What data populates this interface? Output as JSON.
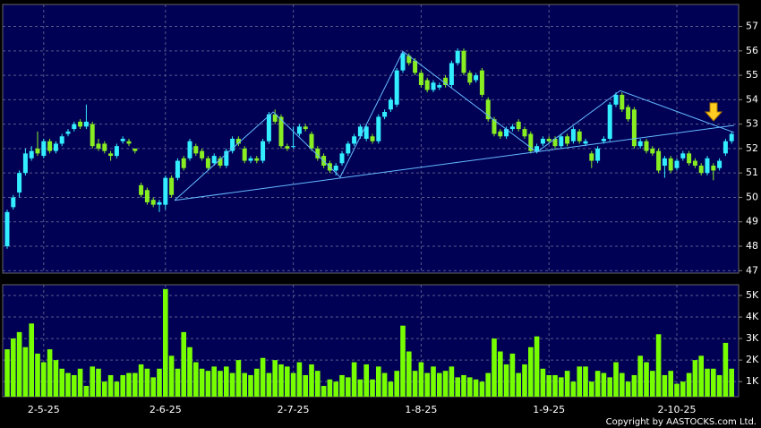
{
  "chart_data": {
    "type": "candlestick",
    "categories": [
      null,
      null,
      null,
      null,
      null,
      null,
      "2-5-25",
      null,
      null,
      null,
      null,
      null,
      null,
      null,
      null,
      null,
      null,
      null,
      null,
      null,
      null,
      null,
      null,
      null,
      null,
      null,
      "2-6-25",
      null,
      null,
      null,
      null,
      null,
      null,
      null,
      null,
      null,
      null,
      null,
      null,
      null,
      null,
      null,
      null,
      null,
      null,
      null,
      null,
      "2-7-25",
      null,
      null,
      null,
      null,
      null,
      null,
      null,
      null,
      null,
      null,
      null,
      null,
      null,
      null,
      null,
      null,
      null,
      null,
      null,
      null,
      "1-8-25",
      null,
      null,
      null,
      null,
      null,
      null,
      null,
      null,
      null,
      null,
      null,
      null,
      null,
      null,
      null,
      null,
      null,
      null,
      null,
      null,
      "1-9-25",
      null,
      null,
      null,
      null,
      null,
      null,
      null,
      null,
      null,
      null,
      null,
      null,
      null,
      null,
      null,
      null,
      null,
      null,
      null,
      null,
      "2-10-25",
      null,
      null,
      null,
      null,
      null,
      null,
      null,
      null,
      null
    ],
    "ohlc": [
      [
        48.0,
        49.5,
        47.9,
        49.4
      ],
      [
        49.6,
        50.1,
        49.5,
        50.0
      ],
      [
        50.2,
        51.1,
        50.0,
        51.0
      ],
      [
        51.0,
        52.0,
        50.9,
        51.8
      ],
      [
        51.6,
        52.1,
        51.5,
        51.9
      ],
      [
        52.0,
        52.7,
        51.7,
        51.8
      ],
      [
        51.7,
        52.4,
        51.6,
        52.3
      ],
      [
        52.3,
        52.4,
        51.8,
        51.9
      ],
      [
        51.9,
        52.3,
        51.8,
        52.2
      ],
      [
        52.2,
        52.6,
        52.1,
        52.5
      ],
      [
        52.6,
        52.8,
        52.5,
        52.7
      ],
      [
        52.8,
        53.1,
        52.7,
        53.0
      ],
      [
        53.1,
        53.2,
        52.8,
        52.9
      ],
      [
        52.9,
        53.8,
        52.8,
        53.1
      ],
      [
        53.0,
        53.1,
        52.0,
        52.1
      ],
      [
        52.2,
        52.4,
        51.9,
        52.0
      ],
      [
        52.2,
        52.3,
        51.8,
        51.9
      ],
      [
        51.8,
        51.9,
        51.5,
        51.7
      ],
      [
        51.7,
        52.2,
        51.6,
        52.1
      ],
      [
        52.3,
        52.5,
        52.2,
        52.4
      ],
      [
        52.3,
        52.4,
        52.1,
        52.2
      ],
      [
        52.0,
        52.0,
        51.8,
        51.9
      ],
      [
        50.5,
        50.6,
        50.0,
        50.1
      ],
      [
        50.3,
        50.4,
        49.7,
        49.8
      ],
      [
        49.9,
        50.0,
        49.6,
        49.7
      ],
      [
        49.7,
        49.9,
        49.4,
        49.8
      ],
      [
        49.7,
        50.9,
        49.5,
        50.8
      ],
      [
        50.8,
        50.9,
        50.0,
        50.1
      ],
      [
        50.8,
        51.6,
        50.7,
        51.5
      ],
      [
        51.6,
        51.7,
        51.1,
        51.2
      ],
      [
        51.6,
        52.4,
        51.5,
        52.3
      ],
      [
        52.1,
        52.2,
        51.7,
        51.8
      ],
      [
        51.9,
        52.0,
        51.5,
        51.6
      ],
      [
        51.6,
        51.7,
        51.1,
        51.2
      ],
      [
        51.4,
        51.8,
        51.3,
        51.7
      ],
      [
        51.6,
        51.7,
        51.2,
        51.3
      ],
      [
        51.3,
        52.0,
        51.2,
        51.9
      ],
      [
        51.9,
        52.5,
        51.8,
        52.4
      ],
      [
        52.4,
        52.5,
        52.1,
        52.2
      ],
      [
        52.0,
        52.1,
        51.4,
        51.5
      ],
      [
        51.5,
        51.7,
        51.4,
        51.6
      ],
      [
        51.6,
        51.7,
        51.4,
        51.5
      ],
      [
        51.5,
        52.4,
        51.4,
        52.3
      ],
      [
        52.3,
        53.5,
        52.2,
        53.4
      ],
      [
        53.4,
        53.6,
        53.0,
        53.1
      ],
      [
        53.3,
        53.4,
        52.0,
        52.1
      ],
      [
        52.1,
        52.2,
        51.9,
        52.0
      ],
      [
        52.1,
        52.9,
        52.0,
        52.1
      ],
      [
        52.6,
        53.0,
        52.5,
        52.9
      ],
      [
        52.9,
        53.0,
        52.7,
        52.8
      ],
      [
        52.6,
        52.7,
        51.9,
        52.0
      ],
      [
        52.0,
        52.1,
        51.5,
        51.6
      ],
      [
        51.7,
        51.8,
        51.2,
        51.3
      ],
      [
        51.4,
        51.5,
        51.0,
        51.1
      ],
      [
        51.1,
        51.4,
        50.9,
        51.3
      ],
      [
        51.4,
        51.9,
        51.3,
        51.8
      ],
      [
        51.8,
        52.3,
        51.7,
        52.2
      ],
      [
        52.2,
        52.6,
        52.1,
        52.5
      ],
      [
        52.5,
        53.0,
        52.4,
        52.9
      ],
      [
        52.4,
        53.0,
        52.3,
        52.9
      ],
      [
        52.5,
        52.6,
        52.2,
        52.3
      ],
      [
        52.3,
        53.4,
        52.2,
        53.3
      ],
      [
        53.3,
        53.6,
        53.2,
        53.5
      ],
      [
        53.6,
        54.1,
        53.5,
        54.0
      ],
      [
        53.8,
        55.3,
        53.7,
        55.2
      ],
      [
        55.2,
        56.0,
        55.1,
        55.9
      ],
      [
        55.8,
        55.9,
        55.4,
        55.5
      ],
      [
        55.6,
        55.7,
        55.0,
        55.1
      ],
      [
        55.1,
        55.2,
        54.5,
        54.6
      ],
      [
        54.8,
        54.9,
        54.3,
        54.4
      ],
      [
        54.4,
        54.8,
        54.3,
        54.7
      ],
      [
        54.5,
        54.7,
        54.4,
        54.6
      ],
      [
        54.9,
        55.0,
        54.5,
        54.6
      ],
      [
        54.6,
        55.6,
        54.5,
        55.5
      ],
      [
        55.5,
        56.1,
        55.4,
        56.0
      ],
      [
        56.0,
        56.1,
        55.0,
        55.1
      ],
      [
        55.1,
        55.2,
        54.6,
        54.7
      ],
      [
        54.8,
        55.1,
        54.7,
        55.0
      ],
      [
        55.2,
        55.3,
        54.1,
        54.2
      ],
      [
        54.0,
        54.1,
        53.1,
        53.2
      ],
      [
        53.2,
        53.3,
        52.5,
        52.6
      ],
      [
        52.7,
        52.8,
        52.4,
        52.5
      ],
      [
        52.5,
        52.9,
        52.4,
        52.8
      ],
      [
        52.8,
        53.0,
        52.7,
        52.9
      ],
      [
        53.1,
        53.2,
        52.7,
        52.8
      ],
      [
        52.8,
        52.9,
        52.4,
        52.5
      ],
      [
        52.6,
        52.7,
        51.8,
        51.9
      ],
      [
        51.9,
        52.2,
        51.8,
        52.1
      ],
      [
        52.2,
        52.5,
        52.1,
        52.4
      ],
      [
        52.4,
        52.5,
        52.2,
        52.3
      ],
      [
        52.4,
        52.5,
        52.0,
        52.1
      ],
      [
        52.1,
        52.6,
        52.0,
        52.5
      ],
      [
        52.5,
        52.6,
        52.1,
        52.2
      ],
      [
        52.3,
        52.9,
        52.2,
        52.8
      ],
      [
        52.7,
        52.8,
        52.2,
        52.3
      ],
      [
        52.2,
        52.4,
        52.1,
        52.3
      ],
      [
        51.8,
        51.9,
        51.2,
        51.5
      ],
      [
        51.5,
        52.1,
        51.4,
        52.0
      ],
      [
        52.3,
        52.5,
        52.2,
        52.4
      ],
      [
        52.4,
        53.9,
        52.3,
        53.8
      ],
      [
        53.8,
        54.3,
        53.7,
        54.2
      ],
      [
        54.2,
        54.3,
        53.5,
        53.6
      ],
      [
        53.7,
        53.8,
        53.1,
        53.2
      ],
      [
        53.6,
        53.7,
        52.0,
        52.1
      ],
      [
        52.1,
        52.4,
        52.0,
        52.3
      ],
      [
        52.3,
        52.4,
        51.8,
        51.9
      ],
      [
        52.0,
        52.1,
        51.7,
        51.8
      ],
      [
        51.9,
        52.0,
        51.0,
        51.1
      ],
      [
        51.3,
        51.7,
        50.8,
        51.6
      ],
      [
        51.6,
        51.7,
        51.0,
        51.1
      ],
      [
        51.2,
        51.6,
        51.1,
        51.5
      ],
      [
        51.6,
        51.9,
        51.5,
        51.8
      ],
      [
        51.8,
        51.9,
        51.3,
        51.4
      ],
      [
        51.5,
        51.6,
        51.2,
        51.3
      ],
      [
        51.3,
        51.4,
        50.9,
        51.0
      ],
      [
        51.0,
        51.7,
        50.9,
        51.6
      ],
      [
        51.3,
        51.4,
        50.7,
        51.1
      ],
      [
        51.2,
        51.6,
        51.1,
        51.5
      ],
      [
        51.8,
        52.4,
        51.7,
        52.3
      ],
      [
        52.3,
        52.7,
        52.2,
        52.6
      ]
    ],
    "volume": [
      2500,
      3000,
      3300,
      2600,
      3700,
      2300,
      1900,
      2500,
      2000,
      1600,
      1400,
      1300,
      1600,
      800,
      1700,
      1600,
      1000,
      1300,
      1000,
      1300,
      1400,
      1400,
      1800,
      1600,
      1200,
      1600,
      5300,
      2200,
      1600,
      3300,
      2600,
      1900,
      1600,
      1500,
      1700,
      1500,
      1700,
      1400,
      2000,
      1400,
      1300,
      1600,
      2100,
      1400,
      2000,
      1800,
      1700,
      1400,
      1900,
      1300,
      1800,
      1500,
      800,
      1100,
      1000,
      1300,
      1200,
      1900,
      1100,
      1800,
      1100,
      1700,
      1400,
      1000,
      1500,
      3600,
      2400,
      1500,
      1900,
      1400,
      1700,
      1400,
      1500,
      1700,
      1200,
      1300,
      1200,
      1100,
      1000,
      1400,
      3000,
      2400,
      1800,
      2300,
      1400,
      1800,
      2600,
      3100,
      1600,
      1300,
      1300,
      1200,
      1500,
      1000,
      1700,
      1700,
      1000,
      1500,
      1400,
      1200,
      1900,
      1400,
      1000,
      1300,
      2200,
      1900,
      1500,
      3200,
      1300,
      1500,
      900,
      1000,
      1400,
      2000,
      2200,
      1600,
      1600,
      1300,
      2800,
      1600
    ],
    "up_color": "#33eeff",
    "down_color": "#88ee22",
    "volume_color": "#77ff00",
    "trend_color": "#66bbff",
    "trendlines": [
      {
        "x": [
          27.5,
          43.7,
          54.7,
          65,
          87,
          100.7,
          119.4
        ],
        "y": [
          49.88,
          53.5,
          50.83,
          55.98,
          51.85,
          54.37,
          52.66
        ]
      },
      {
        "x": [
          27.5,
          119.4
        ],
        "y": [
          49.88,
          52.95
        ]
      }
    ],
    "ylim": [
      46.9,
      57.9
    ],
    "yticks": [
      47,
      48,
      49,
      50,
      51,
      52,
      53,
      54,
      55,
      56,
      57
    ],
    "y2lim": [
      300,
      5500
    ],
    "y2ticks": [
      {
        "value": 1000,
        "label": "1K"
      },
      {
        "value": 2000,
        "label": "2K"
      },
      {
        "value": 3000,
        "label": "3K"
      },
      {
        "value": 4000,
        "label": "4K"
      },
      {
        "value": 5000,
        "label": "5K"
      }
    ],
    "grid": true,
    "copyright": "Copyright by AASTOCKS.com Ltd."
  }
}
